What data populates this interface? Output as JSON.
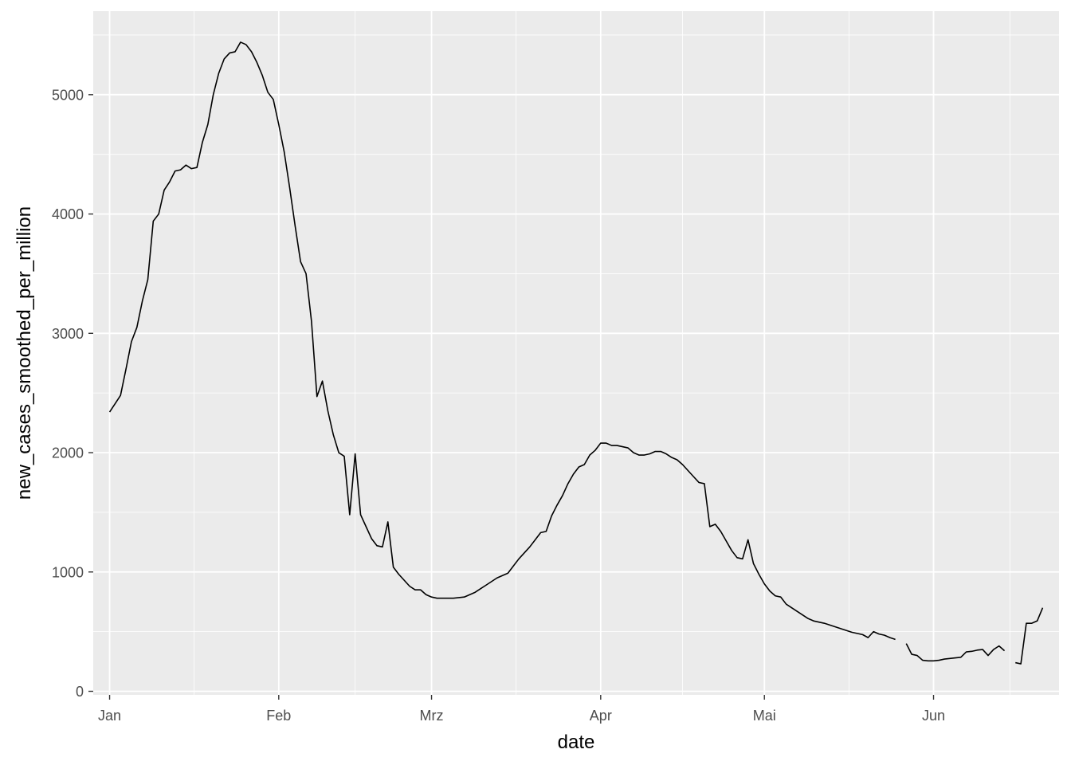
{
  "chart_data": {
    "type": "line",
    "xlabel": "date",
    "ylabel": "new_cases_smoothed_per_million",
    "x_tick_labels": [
      "Jan",
      "Feb",
      "Mrz",
      "Apr",
      "Mai",
      "Jun"
    ],
    "y_tick_labels": [
      "0",
      "1000",
      "2000",
      "3000",
      "4000",
      "5000"
    ],
    "y_ticks": [
      0,
      1000,
      2000,
      3000,
      4000,
      5000
    ],
    "ylim": [
      -30,
      5700
    ],
    "xlim": [
      "2021-12-29",
      "2022-06-24"
    ],
    "grid": true,
    "legend": "none",
    "colors": {
      "panel": "#ebebeb",
      "grid": "#ffffff",
      "line": "#000000",
      "tick_text": "#4d4d4d",
      "tick_mark": "#333333"
    },
    "series": [
      {
        "segments": [
          [
            [
              "2022-01-01",
              2340
            ],
            [
              "2022-01-02",
              2410
            ],
            [
              "2022-01-03",
              2480
            ],
            [
              "2022-01-04",
              2700
            ],
            [
              "2022-01-05",
              2930
            ],
            [
              "2022-01-06",
              3050
            ],
            [
              "2022-01-07",
              3270
            ],
            [
              "2022-01-08",
              3450
            ],
            [
              "2022-01-09",
              3940
            ],
            [
              "2022-01-10",
              4000
            ],
            [
              "2022-01-11",
              4200
            ],
            [
              "2022-01-12",
              4270
            ],
            [
              "2022-01-13",
              4360
            ],
            [
              "2022-01-14",
              4370
            ],
            [
              "2022-01-15",
              4410
            ],
            [
              "2022-01-16",
              4380
            ],
            [
              "2022-01-17",
              4390
            ],
            [
              "2022-01-18",
              4600
            ],
            [
              "2022-01-19",
              4750
            ],
            [
              "2022-01-20",
              5000
            ],
            [
              "2022-01-21",
              5180
            ],
            [
              "2022-01-22",
              5300
            ],
            [
              "2022-01-23",
              5350
            ],
            [
              "2022-01-24",
              5360
            ],
            [
              "2022-01-25",
              5440
            ],
            [
              "2022-01-26",
              5420
            ],
            [
              "2022-01-27",
              5360
            ],
            [
              "2022-01-28",
              5270
            ],
            [
              "2022-01-29",
              5160
            ],
            [
              "2022-01-30",
              5020
            ],
            [
              "2022-01-31",
              4960
            ],
            [
              "2022-02-01",
              4750
            ],
            [
              "2022-02-02",
              4520
            ],
            [
              "2022-02-03",
              4220
            ],
            [
              "2022-02-04",
              3900
            ],
            [
              "2022-02-05",
              3600
            ],
            [
              "2022-02-06",
              3500
            ],
            [
              "2022-02-07",
              3100
            ],
            [
              "2022-02-08",
              2470
            ],
            [
              "2022-02-09",
              2600
            ],
            [
              "2022-02-10",
              2350
            ],
            [
              "2022-02-11",
              2150
            ],
            [
              "2022-02-12",
              2000
            ],
            [
              "2022-02-13",
              1970
            ],
            [
              "2022-02-14",
              1480
            ],
            [
              "2022-02-15",
              1990
            ],
            [
              "2022-02-16",
              1480
            ],
            [
              "2022-02-17",
              1380
            ],
            [
              "2022-02-18",
              1280
            ],
            [
              "2022-02-19",
              1220
            ],
            [
              "2022-02-20",
              1210
            ],
            [
              "2022-02-21",
              1420
            ],
            [
              "2022-02-22",
              1040
            ],
            [
              "2022-02-23",
              980
            ],
            [
              "2022-02-24",
              930
            ],
            [
              "2022-02-25",
              880
            ],
            [
              "2022-02-26",
              850
            ],
            [
              "2022-02-27",
              850
            ],
            [
              "2022-02-28",
              810
            ],
            [
              "2022-03-01",
              790
            ],
            [
              "2022-03-02",
              780
            ],
            [
              "2022-03-03",
              780
            ],
            [
              "2022-03-04",
              780
            ],
            [
              "2022-03-05",
              780
            ],
            [
              "2022-03-06",
              785
            ],
            [
              "2022-03-07",
              790
            ],
            [
              "2022-03-08",
              810
            ],
            [
              "2022-03-09",
              830
            ],
            [
              "2022-03-10",
              860
            ],
            [
              "2022-03-11",
              890
            ],
            [
              "2022-03-12",
              920
            ],
            [
              "2022-03-13",
              950
            ],
            [
              "2022-03-14",
              970
            ],
            [
              "2022-03-15",
              990
            ],
            [
              "2022-03-16",
              1050
            ],
            [
              "2022-03-17",
              1110
            ],
            [
              "2022-03-18",
              1160
            ],
            [
              "2022-03-19",
              1210
            ],
            [
              "2022-03-20",
              1270
            ],
            [
              "2022-03-21",
              1330
            ],
            [
              "2022-03-22",
              1340
            ],
            [
              "2022-03-23",
              1470
            ],
            [
              "2022-03-24",
              1560
            ],
            [
              "2022-03-25",
              1640
            ],
            [
              "2022-03-26",
              1740
            ],
            [
              "2022-03-27",
              1820
            ],
            [
              "2022-03-28",
              1880
            ],
            [
              "2022-03-29",
              1900
            ],
            [
              "2022-03-30",
              1980
            ],
            [
              "2022-03-31",
              2020
            ],
            [
              "2022-04-01",
              2080
            ],
            [
              "2022-04-02",
              2080
            ],
            [
              "2022-04-03",
              2060
            ],
            [
              "2022-04-04",
              2060
            ],
            [
              "2022-04-05",
              2050
            ],
            [
              "2022-04-06",
              2040
            ],
            [
              "2022-04-07",
              2000
            ],
            [
              "2022-04-08",
              1980
            ],
            [
              "2022-04-09",
              1980
            ],
            [
              "2022-04-10",
              1990
            ],
            [
              "2022-04-11",
              2010
            ],
            [
              "2022-04-12",
              2010
            ],
            [
              "2022-04-13",
              1990
            ],
            [
              "2022-04-14",
              1960
            ],
            [
              "2022-04-15",
              1940
            ],
            [
              "2022-04-16",
              1900
            ],
            [
              "2022-04-17",
              1850
            ],
            [
              "2022-04-18",
              1800
            ],
            [
              "2022-04-19",
              1750
            ],
            [
              "2022-04-20",
              1740
            ],
            [
              "2022-04-21",
              1380
            ],
            [
              "2022-04-22",
              1400
            ],
            [
              "2022-04-23",
              1340
            ],
            [
              "2022-04-24",
              1260
            ],
            [
              "2022-04-25",
              1180
            ],
            [
              "2022-04-26",
              1120
            ],
            [
              "2022-04-27",
              1110
            ],
            [
              "2022-04-28",
              1270
            ],
            [
              "2022-04-29",
              1070
            ],
            [
              "2022-04-30",
              980
            ],
            [
              "2022-05-01",
              900
            ],
            [
              "2022-05-02",
              840
            ],
            [
              "2022-05-03",
              800
            ],
            [
              "2022-05-04",
              790
            ],
            [
              "2022-05-05",
              730
            ],
            [
              "2022-05-06",
              700
            ],
            [
              "2022-05-07",
              670
            ],
            [
              "2022-05-08",
              640
            ],
            [
              "2022-05-09",
              610
            ],
            [
              "2022-05-10",
              590
            ],
            [
              "2022-05-11",
              580
            ],
            [
              "2022-05-12",
              570
            ],
            [
              "2022-05-13",
              555
            ],
            [
              "2022-05-14",
              540
            ],
            [
              "2022-05-15",
              525
            ],
            [
              "2022-05-16",
              510
            ],
            [
              "2022-05-17",
              495
            ],
            [
              "2022-05-18",
              485
            ],
            [
              "2022-05-19",
              475
            ],
            [
              "2022-05-20",
              450
            ],
            [
              "2022-05-21",
              500
            ],
            [
              "2022-05-22",
              480
            ],
            [
              "2022-05-23",
              470
            ],
            [
              "2022-05-24",
              450
            ],
            [
              "2022-05-25",
              435
            ]
          ],
          [
            [
              "2022-05-27",
              400
            ],
            [
              "2022-05-28",
              310
            ],
            [
              "2022-05-29",
              300
            ],
            [
              "2022-05-30",
              260
            ],
            [
              "2022-05-31",
              255
            ],
            [
              "2022-06-01",
              255
            ],
            [
              "2022-06-02",
              260
            ],
            [
              "2022-06-03",
              270
            ],
            [
              "2022-06-04",
              275
            ],
            [
              "2022-06-05",
              280
            ],
            [
              "2022-06-06",
              285
            ],
            [
              "2022-06-07",
              330
            ],
            [
              "2022-06-08",
              335
            ],
            [
              "2022-06-09",
              345
            ],
            [
              "2022-06-10",
              350
            ],
            [
              "2022-06-11",
              300
            ],
            [
              "2022-06-12",
              350
            ],
            [
              "2022-06-13",
              380
            ],
            [
              "2022-06-14",
              340
            ]
          ],
          [
            [
              "2022-06-16",
              240
            ],
            [
              "2022-06-17",
              230
            ],
            [
              "2022-06-18",
              570
            ],
            [
              "2022-06-19",
              570
            ],
            [
              "2022-06-20",
              590
            ],
            [
              "2022-06-21",
              700
            ]
          ]
        ]
      }
    ]
  }
}
